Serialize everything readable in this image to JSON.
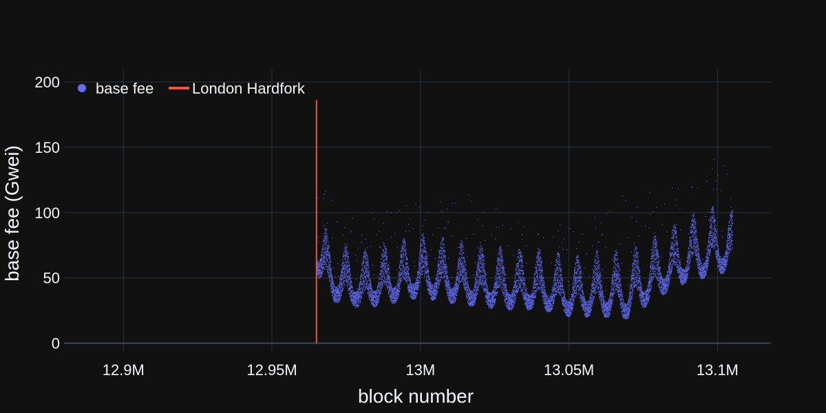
{
  "theme": {
    "background": "#111111",
    "grid_color": "#283442",
    "zero_line_color": "#3a4a5c",
    "text_color": "#f2f5fa"
  },
  "chart_data": {
    "type": "scatter",
    "title": "",
    "xlabel": "block number",
    "ylabel": "base fee (Gwei)",
    "xlim": [
      12880000,
      13118000
    ],
    "ylim": [
      -6,
      210
    ],
    "x_ticks": [
      {
        "value": 12900000,
        "label": "12.9M"
      },
      {
        "value": 12950000,
        "label": "12.95M"
      },
      {
        "value": 13000000,
        "label": "13M"
      },
      {
        "value": 13050000,
        "label": "13.05M"
      },
      {
        "value": 13100000,
        "label": "13.1M"
      }
    ],
    "y_ticks": [
      {
        "value": 0,
        "label": "0"
      },
      {
        "value": 50,
        "label": "50"
      },
      {
        "value": 100,
        "label": "100"
      },
      {
        "value": 150,
        "label": "150"
      },
      {
        "value": 200,
        "label": "200"
      }
    ],
    "grid": true,
    "legend": {
      "placement": "top-left",
      "items": [
        {
          "name": "base fee",
          "marker": "dot",
          "color": "#636efa"
        },
        {
          "name": "London Hardfork",
          "marker": "line",
          "color": "#ef553b"
        }
      ]
    },
    "series": [
      {
        "name": "base fee",
        "color": "#636efa",
        "x_start": 12965000,
        "x_end": 13105000,
        "approx_envelope": [
          {
            "x": 12965000,
            "low": 40,
            "mid": 70,
            "high": 120
          },
          {
            "x": 12970000,
            "low": 28,
            "mid": 45,
            "high": 95
          },
          {
            "x": 12980000,
            "low": 24,
            "mid": 38,
            "high": 80
          },
          {
            "x": 12990000,
            "low": 28,
            "mid": 42,
            "high": 90
          },
          {
            "x": 13000000,
            "low": 30,
            "mid": 48,
            "high": 100
          },
          {
            "x": 13010000,
            "low": 26,
            "mid": 44,
            "high": 95
          },
          {
            "x": 13020000,
            "low": 24,
            "mid": 40,
            "high": 90
          },
          {
            "x": 13030000,
            "low": 22,
            "mid": 38,
            "high": 85
          },
          {
            "x": 13040000,
            "low": 22,
            "mid": 38,
            "high": 85
          },
          {
            "x": 13050000,
            "low": 18,
            "mid": 32,
            "high": 80
          },
          {
            "x": 13060000,
            "low": 18,
            "mid": 32,
            "high": 85
          },
          {
            "x": 13070000,
            "low": 16,
            "mid": 30,
            "high": 90
          },
          {
            "x": 13080000,
            "low": 28,
            "mid": 50,
            "high": 100
          },
          {
            "x": 13090000,
            "low": 35,
            "mid": 65,
            "high": 120
          },
          {
            "x": 13100000,
            "low": 40,
            "mid": 70,
            "high": 130
          },
          {
            "x": 13105000,
            "low": 45,
            "mid": 75,
            "high": 120
          }
        ]
      }
    ],
    "vertical_lines": [
      {
        "name": "London Hardfork",
        "x": 12965000,
        "y_from": 0,
        "y_to": 186,
        "color": "#ef553b"
      }
    ]
  }
}
